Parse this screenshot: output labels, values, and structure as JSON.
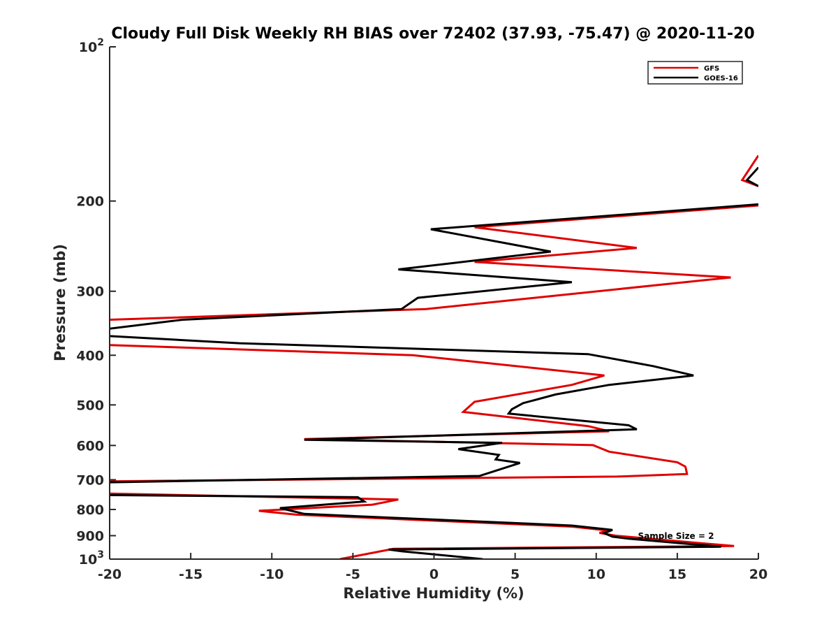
{
  "chart_data": {
    "type": "line",
    "title": "Cloudy Full Disk Weekly RH BIAS over 72402 (37.93, -75.47) @ 2020-11-20",
    "xlabel": "Relative Humidity (%)",
    "ylabel": "Pressure (mb)",
    "xlim": [
      -20,
      20
    ],
    "ylim": [
      100,
      1000
    ],
    "y_scale": "log",
    "y_reversed": true,
    "x_ticks": [
      "-20",
      "-15",
      "-10",
      "-5",
      "0",
      "5",
      "10",
      "15",
      "20"
    ],
    "x_tick_values": [
      -20,
      -15,
      -10,
      -5,
      0,
      5,
      10,
      15,
      20
    ],
    "y_ticks": [
      {
        "value": 100,
        "base": "10",
        "exp": "2"
      },
      {
        "value": 200,
        "label": "200"
      },
      {
        "value": 300,
        "label": "300"
      },
      {
        "value": 400,
        "label": "400"
      },
      {
        "value": 500,
        "label": "500"
      },
      {
        "value": 600,
        "label": "600"
      },
      {
        "value": 700,
        "label": "700"
      },
      {
        "value": 800,
        "label": "800"
      },
      {
        "value": 900,
        "label": "900"
      },
      {
        "value": 1000,
        "base": "10",
        "exp": "3"
      }
    ],
    "legend_position": "top-right",
    "annotation": "Sample Size = 2",
    "series": [
      {
        "name": "GFS",
        "color": "#e00000",
        "points": [
          [
            20,
            163
          ],
          [
            19,
            182
          ],
          [
            20,
            187
          ],
          null,
          [
            20,
            204
          ],
          [
            2.5,
            225
          ],
          [
            12.5,
            247
          ],
          [
            2.5,
            263
          ],
          [
            18.3,
            282
          ],
          [
            -0.5,
            325
          ],
          [
            -20,
            341
          ],
          null,
          [
            -20,
            382
          ],
          [
            -1.3,
            400
          ],
          [
            10.5,
            438
          ],
          [
            8.5,
            457
          ],
          [
            2.5,
            493
          ],
          [
            1.8,
            516
          ],
          [
            9.5,
            550
          ],
          [
            10.8,
            563
          ],
          [
            -8,
            583
          ],
          [
            9.8,
            599
          ],
          [
            10.8,
            617
          ],
          [
            15,
            647
          ],
          [
            15.5,
            660
          ],
          [
            15.6,
            682
          ],
          [
            11.3,
            690
          ],
          [
            -20,
            705
          ],
          null,
          [
            -20,
            745
          ],
          [
            -2.2,
            765
          ],
          [
            -3.8,
            783
          ],
          [
            -10.8,
            805
          ],
          [
            -8.5,
            819
          ],
          [
            8.5,
            864
          ],
          [
            10.8,
            880
          ],
          [
            10.2,
            889
          ],
          [
            11.2,
            900
          ],
          [
            17.5,
            937
          ],
          [
            18.5,
            943
          ],
          [
            -2.5,
            955
          ],
          [
            -5.8,
            1000
          ]
        ]
      },
      {
        "name": "GOES-16",
        "color": "#000000",
        "points": [
          [
            20,
            172
          ],
          [
            19.3,
            182
          ],
          [
            20,
            187
          ],
          null,
          [
            20,
            203
          ],
          [
            -0.2,
            227
          ],
          [
            7.2,
            251
          ],
          [
            -2.2,
            272
          ],
          [
            8.5,
            288
          ],
          [
            -1.0,
            309
          ],
          [
            -2.0,
            325
          ],
          [
            -15.5,
            341
          ],
          [
            -20,
            355
          ],
          null,
          [
            -20,
            367
          ],
          [
            -12,
            379
          ],
          [
            9.5,
            398
          ],
          [
            13.5,
            420
          ],
          [
            16,
            438
          ],
          [
            10.8,
            457
          ],
          [
            7.5,
            477
          ],
          [
            5.5,
            496
          ],
          [
            4.8,
            510
          ],
          [
            4.6,
            520
          ],
          [
            12,
            548
          ],
          [
            12.5,
            558
          ],
          [
            -8,
            585
          ],
          [
            4.2,
            593
          ],
          [
            1.5,
            610
          ],
          [
            4,
            626
          ],
          [
            3.8,
            639
          ],
          [
            5.3,
            649
          ],
          [
            2.8,
            688
          ],
          [
            -20,
            708
          ],
          null,
          [
            -20,
            750
          ],
          [
            -4.7,
            757
          ],
          [
            -4.3,
            772
          ],
          [
            -9.5,
            795
          ],
          [
            -8.0,
            816
          ],
          [
            8.5,
            860
          ],
          [
            11.0,
            877
          ],
          [
            10.5,
            890
          ],
          [
            11.0,
            904
          ],
          [
            12.0,
            912
          ],
          [
            17.7,
            946
          ],
          [
            -2.8,
            958
          ],
          [
            -2.0,
            965
          ],
          [
            3.0,
            1000
          ]
        ]
      }
    ]
  }
}
